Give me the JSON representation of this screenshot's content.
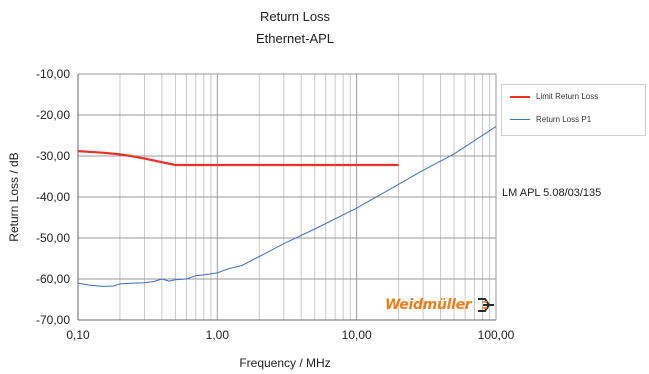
{
  "chart_data": {
    "type": "line",
    "title": "Return Loss",
    "subtitle": "Ethernet-APL",
    "xlabel": "Frequency / MHz",
    "ylabel": "Return Loss / dB",
    "xscale": "log",
    "xlim": [
      0.1,
      100
    ],
    "ylim": [
      -70,
      -10
    ],
    "xticks": [
      0.1,
      1,
      10,
      100
    ],
    "xtick_labels": [
      "0,10",
      "1,00",
      "10,00",
      "100,00"
    ],
    "yticks": [
      -10,
      -20,
      -30,
      -40,
      -50,
      -60,
      -70
    ],
    "ytick_labels": [
      "-10,00",
      "-20,00",
      "-30,00",
      "-40,00",
      "-50,00",
      "-60,00",
      "-70,00"
    ],
    "grid": true,
    "legend_position": "right",
    "series": [
      {
        "name": "Limit Return Loss",
        "color": "#ee3124",
        "x": [
          0.1,
          0.15,
          0.2,
          0.25,
          0.3,
          0.4,
          0.5,
          1,
          5,
          10,
          20
        ],
        "y": [
          -28.8,
          -29.2,
          -29.6,
          -30.1,
          -30.6,
          -31.5,
          -32.2,
          -32.2,
          -32.2,
          -32.2,
          -32.2
        ]
      },
      {
        "name": "Return Loss P1",
        "color": "#3d6fc2",
        "x": [
          0.1,
          0.12,
          0.15,
          0.18,
          0.2,
          0.25,
          0.3,
          0.35,
          0.4,
          0.45,
          0.5,
          0.6,
          0.7,
          0.8,
          1.0,
          1.2,
          1.5,
          2,
          3,
          5,
          10,
          20,
          30,
          50,
          100
        ],
        "y": [
          -61.0,
          -61.5,
          -61.8,
          -61.7,
          -61.2,
          -61.0,
          -60.9,
          -60.6,
          -60.0,
          -60.5,
          -60.2,
          -60.0,
          -59.2,
          -59.0,
          -58.5,
          -57.5,
          -56.7,
          -54.5,
          -51.4,
          -47.8,
          -42.7,
          -36.9,
          -33.5,
          -29.5,
          -22.8
        ]
      }
    ],
    "annotations": [
      "LM APL 5.08/03/135"
    ]
  },
  "logo": {
    "text": "Weidmüller",
    "color": "#f07d1a"
  }
}
